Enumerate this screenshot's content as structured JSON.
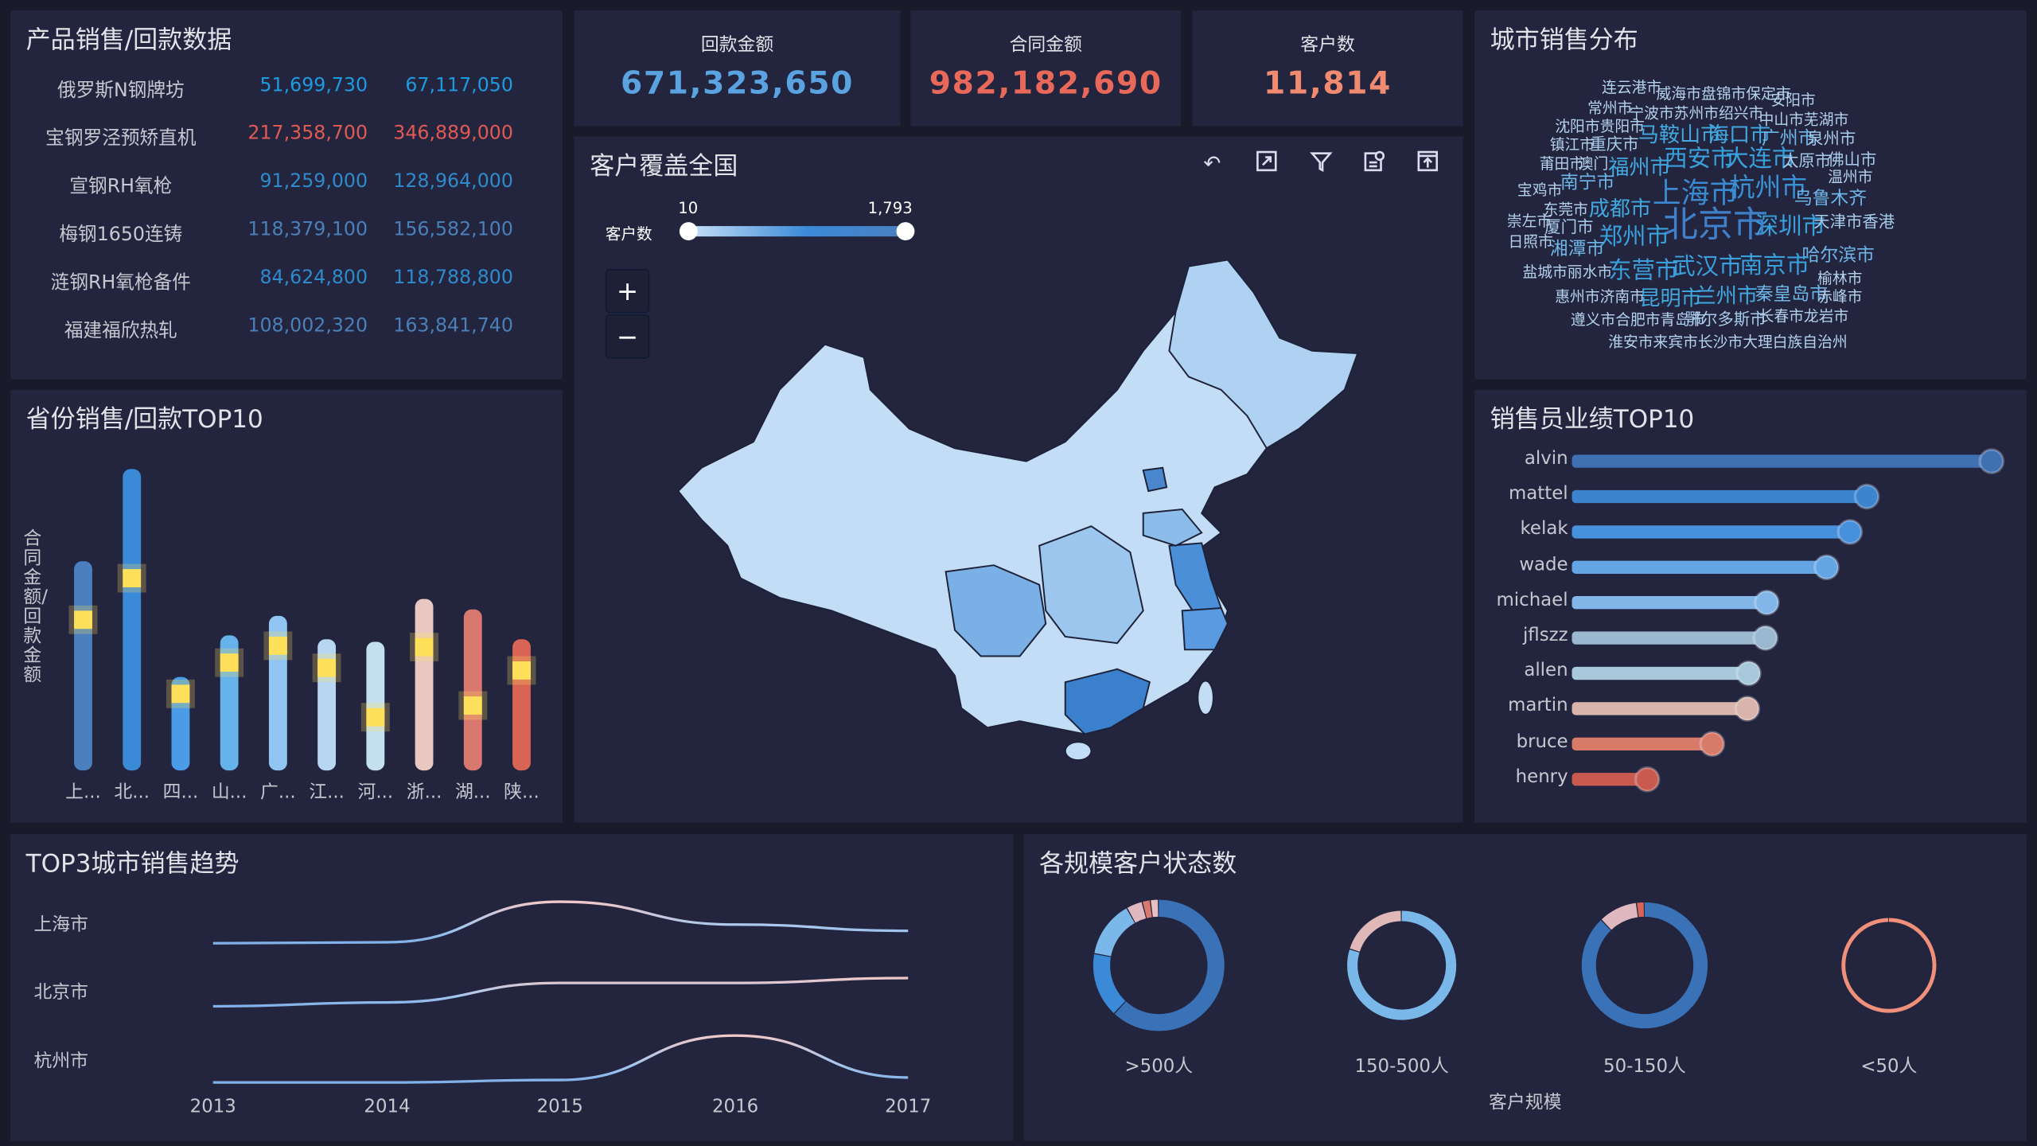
{
  "product": {
    "title": "产品销售/回款数据",
    "rows": [
      {
        "name": "俄罗斯N钢牌坊",
        "sales": "51,699,730",
        "contract": "67,117,050",
        "color": "#1e9ae0"
      },
      {
        "name": "宝钢罗泾预矫直机",
        "sales": "217,358,700",
        "contract": "346,889,000",
        "color": "#e05a54"
      },
      {
        "name": "宣钢RH氧枪",
        "sales": "91,259,000",
        "contract": "128,964,000",
        "color": "#2f8acb"
      },
      {
        "name": "梅钢1650连铸",
        "sales": "118,379,100",
        "contract": "156,582,100",
        "color": "#4a7fb8"
      },
      {
        "name": "涟钢RH氧枪备件",
        "sales": "84,624,800",
        "contract": "118,788,800",
        "color": "#2f8acb"
      },
      {
        "name": "福建福欣热轧",
        "sales": "108,002,320",
        "contract": "163,841,740",
        "color": "#4a7fb8"
      }
    ]
  },
  "kpis": [
    {
      "label": "回款金额",
      "value": "671,323,650",
      "color": "#5aa3e0"
    },
    {
      "label": "合同金额",
      "value": "982,182,690",
      "color": "#e8695a"
    },
    {
      "label": "客户数",
      "value": "11,814",
      "color": "#f08a70"
    }
  ],
  "map": {
    "title": "客户覆盖全国",
    "toolbar": [
      "undo-icon",
      "restore-icon",
      "filter-icon",
      "data-view-icon",
      "save-image-icon"
    ],
    "visual_map": {
      "label": "客户数",
      "min": "10",
      "max": "1,793"
    },
    "zoom_in": "+",
    "zoom_out": "−",
    "fill_light": "#c2ddf5",
    "fill_dark": "#3a80cc"
  },
  "cloud": {
    "title": "城市销售分布",
    "words": [
      {
        "t": "连云港市",
        "w": 1
      },
      {
        "t": "威海市盘锦市保定市",
        "w": 1
      },
      {
        "t": "安阳市",
        "w": 1
      },
      {
        "t": "常州市",
        "w": 1
      },
      {
        "t": "宁波市苏州市绍兴市",
        "w": 1
      },
      {
        "t": "中山市芜湖市",
        "w": 1
      },
      {
        "t": "沈阳市贵阳市",
        "w": 1
      },
      {
        "t": "马鞍山市",
        "w": 4
      },
      {
        "t": "海口市",
        "w": 4
      },
      {
        "t": "广州市",
        "w": 3
      },
      {
        "t": "泉州市",
        "w": 2
      },
      {
        "t": "镇江市",
        "w": 1
      },
      {
        "t": "重庆市",
        "w": 2
      },
      {
        "t": "莆田市",
        "w": 1
      },
      {
        "t": "澳门",
        "w": 1
      },
      {
        "t": "福州市",
        "w": 4
      },
      {
        "t": "西安市",
        "w": 5
      },
      {
        "t": "大连市",
        "w": 5
      },
      {
        "t": "太原市",
        "w": 2
      },
      {
        "t": "佛山市",
        "w": 2
      },
      {
        "t": "温州市",
        "w": 1
      },
      {
        "t": "南宁市",
        "w": 3
      },
      {
        "t": "宝鸡市",
        "w": 1
      },
      {
        "t": "上海市",
        "w": 7
      },
      {
        "t": "杭州市",
        "w": 6
      },
      {
        "t": "乌鲁木齐",
        "w": 3
      },
      {
        "t": "东莞市",
        "w": 1
      },
      {
        "t": "成都市",
        "w": 4
      },
      {
        "t": "北京市",
        "w": 8
      },
      {
        "t": "深圳市",
        "w": 5
      },
      {
        "t": "天津市香港",
        "w": 2
      },
      {
        "t": "崇左市",
        "w": 1
      },
      {
        "t": "厦门市",
        "w": 2
      },
      {
        "t": "日照市",
        "w": 1
      },
      {
        "t": "郑州市",
        "w": 5
      },
      {
        "t": "湘潭市",
        "w": 3
      },
      {
        "t": "哈尔滨市",
        "w": 3
      },
      {
        "t": "东营市",
        "w": 5
      },
      {
        "t": "武汉市",
        "w": 5
      },
      {
        "t": "南京市",
        "w": 5
      },
      {
        "t": "盐城市丽水市",
        "w": 1
      },
      {
        "t": "榆林市",
        "w": 1
      },
      {
        "t": "惠州市济南市",
        "w": 1
      },
      {
        "t": "昆明市",
        "w": 4
      },
      {
        "t": "兰州市",
        "w": 4
      },
      {
        "t": "秦皇岛市",
        "w": 3
      },
      {
        "t": "赤峰市",
        "w": 1
      },
      {
        "t": "遵义市合肥市青岛市",
        "w": 1
      },
      {
        "t": "鄂尔多斯市",
        "w": 2
      },
      {
        "t": "长春市龙岩市",
        "w": 1
      },
      {
        "t": "淮安市来宾市长沙市大理白族自治州",
        "w": 1
      }
    ]
  },
  "province": {
    "title": "省份销售/回款TOP10",
    "ylabel": "合同金额/回款金额",
    "chart_data": {
      "type": "bar",
      "categories": [
        "上...",
        "北...",
        "四...",
        "山...",
        "广...",
        "江...",
        "河...",
        "浙...",
        "湖...",
        "陕..."
      ],
      "series": [
        {
          "values": [
            161,
            232,
            72,
            104,
            119,
            101,
            99,
            132,
            124,
            101
          ]
        },
        {
          "values": [
            114,
            146,
            57,
            81,
            94,
            77,
            39,
            93,
            48,
            75
          ]
        }
      ],
      "colors": [
        "#4a7fc0",
        "#3a8ad8",
        "#4a9ce6",
        "#66b2ea",
        "#90c4f2",
        "#b6d6f2",
        "#c4e0f0",
        "#e8c8c0",
        "#d8786e",
        "#d86456"
      ],
      "marker_color": "#ffe05a"
    }
  },
  "sales": {
    "title": "销售员业绩TOP10",
    "chart_data": {
      "type": "bar",
      "orientation": "horizontal",
      "categories": [
        "alvin",
        "mattel",
        "kelak",
        "wade",
        "michael",
        "jflszz",
        "allen",
        "martin",
        "bruce",
        "henry"
      ],
      "values": [
        323,
        227,
        214,
        196,
        150,
        149,
        136,
        135,
        108,
        58
      ],
      "colors": [
        "#3f70b2",
        "#3d84cf",
        "#4790dc",
        "#64a6e4",
        "#82b6e8",
        "#9ab8d0",
        "#a8c8dc",
        "#d8b4ac",
        "#d87a68",
        "#c85a50"
      ]
    }
  },
  "trend": {
    "title": "TOP3城市销售趋势",
    "chart_data": {
      "type": "line",
      "x": [
        "2013",
        "2014",
        "2015",
        "2016",
        "2017"
      ],
      "series": [
        {
          "name": "上海市",
          "values": [
            10,
            11,
            50,
            28,
            22
          ]
        },
        {
          "name": "北京市",
          "values": [
            10,
            14,
            34,
            34,
            39
          ]
        },
        {
          "name": "杭州市",
          "values": [
            2,
            2,
            4,
            40,
            6
          ]
        }
      ]
    }
  },
  "donuts": {
    "title": "各规模客户状态数",
    "xlabel": "客户规模",
    "chart_data": {
      "type": "pie",
      "charts": [
        {
          "label": ">500人",
          "slices": [
            {
              "v": 62,
              "c": "#3a72b8"
            },
            {
              "v": 16,
              "c": "#3a8ad8"
            },
            {
              "v": 14,
              "c": "#7ab8ea"
            },
            {
              "v": 4,
              "c": "#e0b8c0"
            },
            {
              "v": 2,
              "c": "#d87a6e"
            },
            {
              "v": 2,
              "c": "#e8c0c0"
            }
          ]
        },
        {
          "label": "150-500人",
          "slices": [
            {
              "v": 80,
              "c": "#7ab8ea"
            },
            {
              "v": 20,
              "c": "#e0b8b8"
            }
          ]
        },
        {
          "label": "50-150人",
          "slices": [
            {
              "v": 88,
              "c": "#3a72b8"
            },
            {
              "v": 10,
              "c": "#e0b8c0"
            },
            {
              "v": 2,
              "c": "#d86456"
            }
          ]
        },
        {
          "label": "<50人",
          "slices": [
            {
              "v": 100,
              "c": "#f0907a"
            }
          ]
        }
      ]
    }
  }
}
